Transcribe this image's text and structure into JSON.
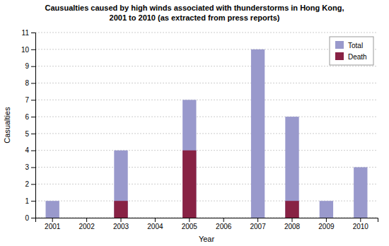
{
  "chart_data": {
    "type": "bar",
    "title": "Causualties caused by high winds associated with thunderstorms in Hong Kong,\n2001 to 2010 (as extracted from press reports)",
    "x_label": "Year",
    "y_label": "Casualties",
    "categories": [
      "2001",
      "2002",
      "2003",
      "2004",
      "2005",
      "2006",
      "2007",
      "2008",
      "2009",
      "2010"
    ],
    "series": [
      {
        "name": "Total",
        "color": "#9999cc",
        "values": [
          1,
          0,
          4,
          0,
          7,
          0,
          10,
          6,
          1,
          3
        ]
      },
      {
        "name": "Death",
        "color": "#882244",
        "values": [
          0,
          0,
          1,
          0,
          4,
          0,
          0,
          1,
          0,
          0
        ]
      }
    ],
    "stacked": false,
    "ylim": [
      0,
      11
    ],
    "yticks": [
      0,
      1,
      2,
      3,
      4,
      5,
      6,
      7,
      8,
      9,
      10,
      11
    ],
    "grid": true,
    "legend": "upper right"
  }
}
